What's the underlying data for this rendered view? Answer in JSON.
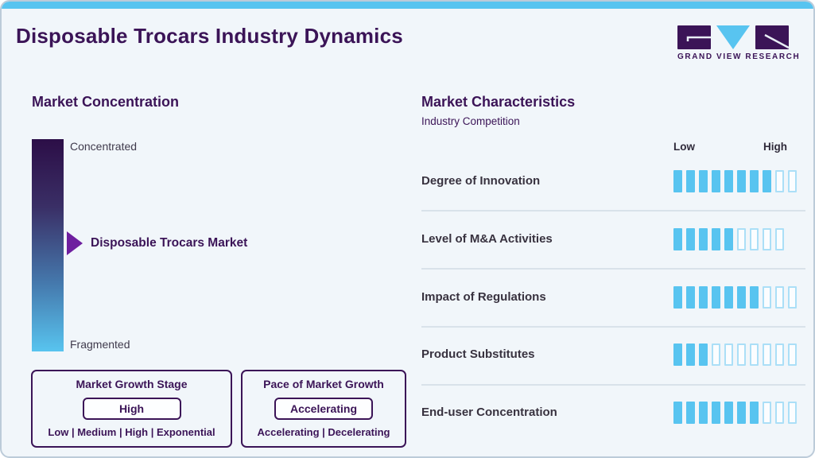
{
  "page": {
    "title": "Disposable Trocars Industry Dynamics"
  },
  "logo": {
    "text": "GRAND VIEW RESEARCH"
  },
  "colors": {
    "accent_blue": "#58c4f0",
    "brand_purple": "#3b1457",
    "arrow_purple": "#6e1f9f",
    "tick_filled": "#58c4f0",
    "tick_empty_border": "#abdff7",
    "gradient_top": "#2c0e47",
    "gradient_bottom": "#58c4ef"
  },
  "market_concentration": {
    "title": "Market Concentration",
    "top_label": "Concentrated",
    "bottom_label": "Fragmented",
    "pointer_label": "Disposable Trocars Market"
  },
  "growth_stage_box": {
    "title": "Market Growth Stage",
    "value": "High",
    "options": "Low | Medium | High | Exponential"
  },
  "pace_box": {
    "title": "Pace of Market Growth",
    "value": "Accelerating",
    "options": "Accelerating | Decelerating"
  },
  "market_characteristics": {
    "title": "Market Characteristics",
    "subtitle": "Industry Competition",
    "scale_low": "Low",
    "scale_high": "High"
  },
  "chart_data": {
    "type": "bar",
    "title": "Market Characteristics — Industry Competition",
    "categories": [
      "Degree of Innovation",
      "Level of M&A Activities",
      "Impact of Regulations",
      "Product Substitutes",
      "End-user Concentration"
    ],
    "values": [
      8,
      5,
      7,
      3,
      7
    ],
    "totals": [
      10,
      9,
      10,
      10,
      10
    ],
    "xlabel": "",
    "ylabel": "",
    "scale_labels": [
      "Low",
      "High"
    ],
    "legend_position": "none",
    "annotations": {
      "market_concentration_scale": [
        "Concentrated",
        "Fragmented"
      ],
      "market_position_label": "Disposable Trocars Market",
      "market_growth_stage": "High",
      "pace_of_market_growth": "Accelerating"
    }
  }
}
